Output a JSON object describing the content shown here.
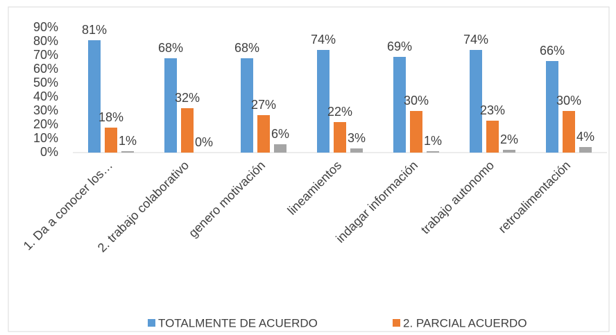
{
  "chart_data": {
    "type": "bar",
    "categories": [
      "1. Da a conocer los…",
      "2. trabajo colaborativo",
      "genero motivación",
      "lineamientos",
      "indagar información",
      "trabajo autonomo",
      "retroalimentación"
    ],
    "series": [
      {
        "name": "TOTALMENTE DE ACUERDO",
        "color": "#5b9bd5",
        "values": [
          81,
          68,
          68,
          74,
          69,
          74,
          66
        ],
        "value_labels": [
          "81%",
          "68%",
          "68%",
          "74%",
          "69%",
          "74%",
          "66%"
        ]
      },
      {
        "name": "2. PARCIAL ACUERDO",
        "color": "#ed7d31",
        "values": [
          18,
          32,
          27,
          22,
          30,
          23,
          30
        ],
        "value_labels": [
          "18%",
          "32%",
          "27%",
          "22%",
          "30%",
          "23%",
          "30%"
        ]
      },
      {
        "color": "#a5a5a5",
        "values": [
          1,
          0,
          6,
          3,
          1,
          2,
          4
        ],
        "value_labels": [
          "1%",
          "0%",
          "6%",
          "3%",
          "1%",
          "2%",
          "4%"
        ]
      }
    ],
    "ylim": [
      0,
      90
    ],
    "yticks": [
      {
        "value": 0,
        "label": "0%"
      },
      {
        "value": 10,
        "label": "10%"
      },
      {
        "value": 20,
        "label": "20%"
      },
      {
        "value": 30,
        "label": "30%"
      },
      {
        "value": 40,
        "label": "40%"
      },
      {
        "value": 50,
        "label": "50%"
      },
      {
        "value": 60,
        "label": "60%"
      },
      {
        "value": 70,
        "label": "70%"
      },
      {
        "value": 80,
        "label": "80%"
      },
      {
        "value": 90,
        "label": "90%"
      }
    ],
    "grid": false,
    "legend": "bottom"
  }
}
